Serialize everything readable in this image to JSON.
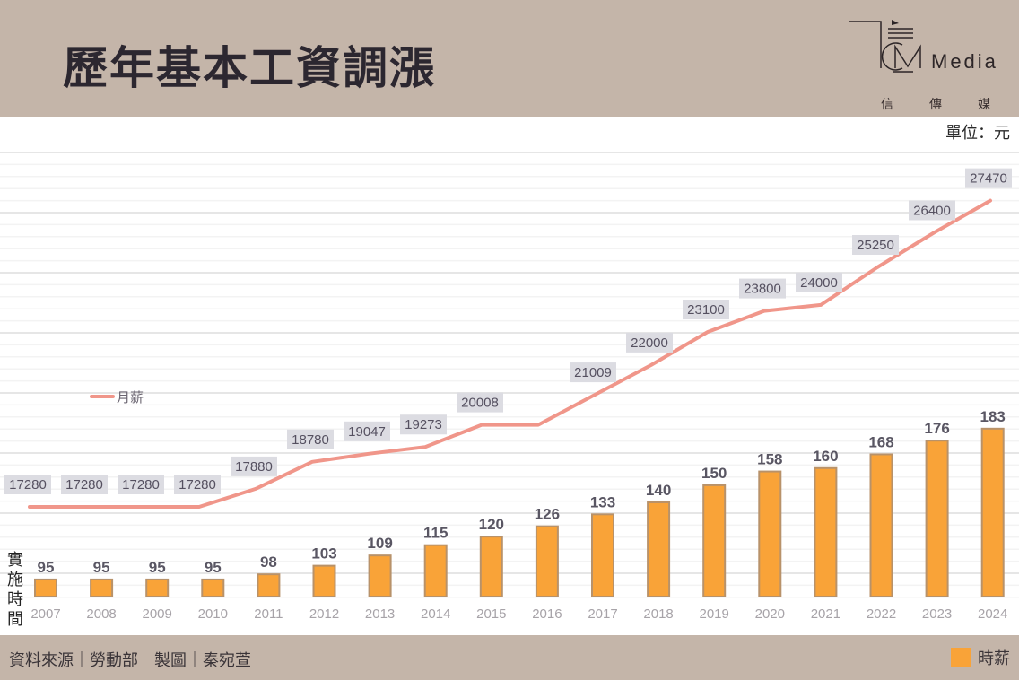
{
  "header": {
    "title": "歷年基本工資調漲",
    "logo_text": "Media",
    "logo_sub": [
      "信",
      "傳",
      "媒"
    ]
  },
  "unit_label": "單位：元",
  "axis_side_label": "實施時間",
  "footer": {
    "source": "資料來源｜勞動部　製圖｜秦宛萱",
    "legend_hourly": "時薪"
  },
  "colors": {
    "bar": "#f9a338",
    "bar_border": "#b8926a",
    "line": "#f0968a",
    "label_bg": "#dcdce2",
    "header_bg": "#c4b5a9"
  },
  "chart_data": {
    "type": "bar",
    "title": "歷年基本工資調漲",
    "xlabel": "實施時間",
    "ylabel": "",
    "categories": [
      "2007",
      "2008",
      "2009",
      "2010",
      "2011",
      "2012",
      "2013",
      "2014",
      "2015",
      "2016",
      "2017",
      "2018",
      "2019",
      "2020",
      "2021",
      "2022",
      "2023",
      "2024"
    ],
    "series": [
      {
        "name": "時薪",
        "type": "bar",
        "values": [
          95,
          95,
          95,
          95,
          98,
          103,
          109,
          115,
          120,
          126,
          133,
          140,
          150,
          158,
          160,
          168,
          176,
          183
        ]
      },
      {
        "name": "月薪",
        "type": "line",
        "values": [
          17280,
          17280,
          17280,
          17280,
          17880,
          18780,
          19047,
          19273,
          20008,
          20008,
          21009,
          22000,
          23100,
          23800,
          24000,
          25250,
          26400,
          27470
        ],
        "labels": [
          "17280",
          "17280",
          "17280",
          "17280",
          "17880",
          "18780",
          "19047",
          "19273",
          "20008",
          "",
          "21009",
          "22000",
          "23100",
          "23800",
          "24000",
          "25250",
          "26400",
          "27470"
        ]
      }
    ],
    "legend": [
      {
        "name": "月薪",
        "position": "center-left"
      },
      {
        "name": "時薪",
        "position": "bottom-right"
      }
    ],
    "grid": true
  }
}
